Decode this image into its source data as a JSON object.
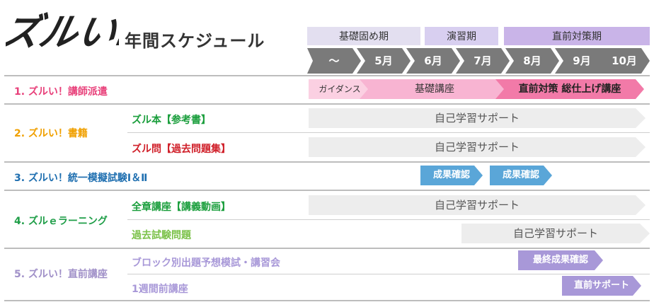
{
  "header": {
    "logo_text": "ズルい!",
    "subtitle": "年間スケジュール"
  },
  "phases": [
    {
      "label": "基礎固め期"
    },
    {
      "label": "演習期"
    },
    {
      "label": "直前対策期"
    }
  ],
  "months": [
    "〜",
    "5月",
    "6月",
    "7月",
    "8月",
    "9月",
    "10月"
  ],
  "rows": {
    "dispatch": {
      "category": "1. ズルい！講師派遣",
      "bars": {
        "guidance": "ガイダンス",
        "basic": "基礎講座",
        "final": "直前対策 総仕上げ講座"
      }
    },
    "books": {
      "category": "2. ズルい！書籍",
      "items": [
        {
          "label": "ズル本【参考書】",
          "bar": "自己学習サポート"
        },
        {
          "label": "ズル問【過去問題集】",
          "bar": "自己学習サポート"
        }
      ]
    },
    "exam": {
      "category": "3. ズルい！統一模擬試験Ⅰ＆Ⅱ",
      "bars": [
        "成果確認",
        "成果確認"
      ]
    },
    "elearning": {
      "category": "4. ズルｅラーニング",
      "items": [
        {
          "label": "全章講座【講義動画】",
          "bar": "自己学習サポート"
        },
        {
          "label": "過去試験問題",
          "bar": "自己学習サポート"
        }
      ]
    },
    "final_course": {
      "category": "5. ズルい！直前講座",
      "items": [
        {
          "label": "ブロック別出題予想模試・講習会",
          "bar": "最終成果確認"
        },
        {
          "label": "1週間前講座",
          "bar": "直前サポート"
        }
      ]
    }
  },
  "colors": {
    "dispatch": "#e8407a",
    "books": "#f0a000",
    "books_item1": "#1a9e3c",
    "books_item2": "#d0202a",
    "exam": "#1f6fb0",
    "elearning": "#1f9e48",
    "elearning_item2": "#7cc24a",
    "final_course": "#a090c8",
    "month_arrow": "#7a7a7a",
    "phase_basic": "#e3dff0",
    "phase_practice": "#d8cff0",
    "phase_final": "#c9b4e8",
    "support_bar": "#ededed",
    "exam_bar": "#5aa6d8",
    "final_bar": "#a898d8",
    "pink_light": "#fbd0e2",
    "pink_mid": "#f8b4d2",
    "pink_dark": "#f27aa8"
  }
}
